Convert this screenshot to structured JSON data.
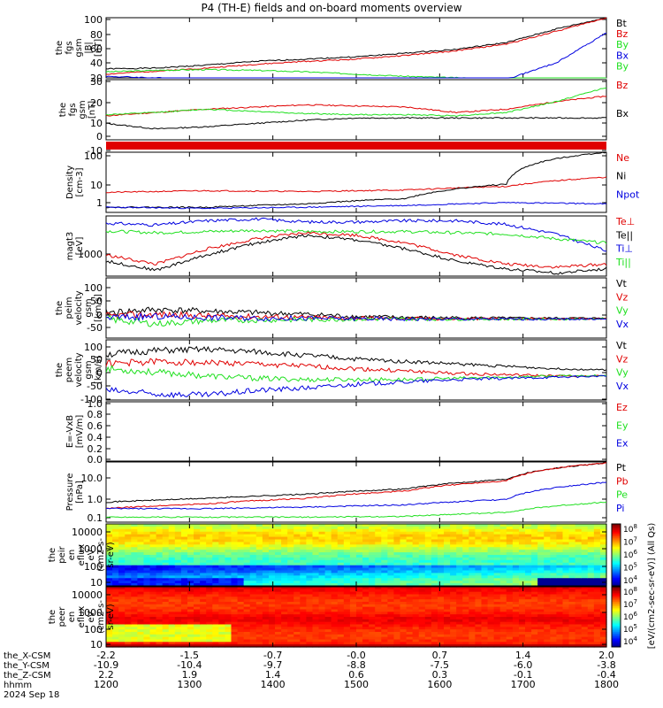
{
  "title": "P4 (TH-E) fields and on-board moments overview",
  "colors": {
    "black": "#000000",
    "red": "#e00000",
    "green": "#20e020",
    "blue": "#0000e0",
    "white": "#ffffff"
  },
  "chart_data": [
    {
      "id": "fgs_mag",
      "type": "line",
      "ylabel": [
        "the",
        "fgs",
        "gsm",
        "|B|",
        "[nT]"
      ],
      "yticks": [
        "100",
        "80",
        "60",
        "40",
        "20"
      ],
      "ylim": [
        20,
        100
      ],
      "legend": [
        {
          "label": "Bt",
          "color": "black"
        },
        {
          "label": "Bz",
          "color": "red"
        },
        {
          "label": "By",
          "color": "green"
        },
        {
          "label": "Bx",
          "color": "blue"
        },
        {
          "label": "By",
          "color": "green"
        }
      ],
      "series": [
        {
          "name": "Bt",
          "color": "black",
          "x": [
            0,
            0.1,
            0.2,
            0.3,
            0.4,
            0.5,
            0.6,
            0.7,
            0.8,
            0.9,
            1.0
          ],
          "y": [
            32,
            33,
            37,
            42,
            45,
            48,
            53,
            58,
            67,
            85,
            100
          ]
        },
        {
          "name": "Bz",
          "color": "red",
          "x": [
            0,
            0.1,
            0.2,
            0.3,
            0.4,
            0.5,
            0.6,
            0.7,
            0.8,
            0.9,
            1.0
          ],
          "y": [
            25,
            29,
            33,
            38,
            42,
            45,
            50,
            56,
            65,
            82,
            100
          ]
        },
        {
          "name": "By",
          "color": "green",
          "x": [
            0,
            0.1,
            0.2,
            0.3,
            0.4,
            0.5,
            0.6,
            0.7,
            0.8,
            0.9,
            1.0
          ],
          "y": [
            28,
            30,
            31,
            30,
            28,
            25,
            22,
            20,
            18,
            17,
            16
          ]
        },
        {
          "name": "Bx",
          "color": "blue",
          "x": [
            0,
            0.1,
            0.2,
            0.3,
            0.4,
            0.5,
            0.6,
            0.7,
            0.8,
            0.9,
            1.0
          ],
          "y": [
            22,
            20,
            18,
            15,
            12,
            10,
            10,
            12,
            18,
            40,
            80
          ]
        }
      ]
    },
    {
      "id": "fgs_comp",
      "type": "line",
      "ylabel": [
        "the",
        "fgs",
        "gsm",
        "[nT]"
      ],
      "yticks": [
        "30",
        "20",
        "10",
        "0",
        "-10"
      ],
      "ylim": [
        -20,
        35
      ],
      "legend": [
        {
          "label": "Bz",
          "color": "red"
        },
        {
          "label": "Bx",
          "color": "black"
        }
      ],
      "series": [
        {
          "name": "Bz",
          "color": "red",
          "x": [
            0,
            0.1,
            0.2,
            0.3,
            0.4,
            0.5,
            0.6,
            0.7,
            0.8,
            0.9,
            1.0
          ],
          "y": [
            2,
            5,
            8,
            10,
            12,
            11,
            10,
            5,
            8,
            15,
            20
          ]
        },
        {
          "name": "By",
          "color": "green",
          "x": [
            0,
            0.1,
            0.2,
            0.3,
            0.4,
            0.5,
            0.6,
            0.7,
            0.8,
            0.9,
            1.0
          ],
          "y": [
            3,
            5,
            8,
            6,
            4,
            3,
            3,
            2,
            5,
            15,
            28
          ]
        },
        {
          "name": "Bx",
          "color": "black",
          "x": [
            0,
            0.1,
            0.2,
            0.3,
            0.4,
            0.5,
            0.6,
            0.7,
            0.8,
            0.9,
            1.0
          ],
          "y": [
            -5,
            -10,
            -8,
            -5,
            -2,
            0,
            0,
            0,
            0,
            0,
            0
          ]
        }
      ]
    },
    {
      "id": "density",
      "type": "line",
      "ylog": true,
      "ylabel": [
        "Density",
        "[cm-3]"
      ],
      "yticks": [
        "100",
        "10",
        "1"
      ],
      "ylim": [
        0.3,
        120
      ],
      "legend": [
        {
          "label": "Ne",
          "color": "red"
        },
        {
          "label": "Ni",
          "color": "black"
        },
        {
          "label": "Npot",
          "color": "blue"
        }
      ],
      "series": [
        {
          "name": "Ne",
          "color": "red",
          "x": [
            0,
            0.2,
            0.4,
            0.6,
            0.8,
            1.0
          ],
          "y": [
            2.2,
            2.6,
            2.4,
            2.8,
            4,
            10
          ]
        },
        {
          "name": "Ni",
          "color": "black",
          "x": [
            0,
            0.2,
            0.4,
            0.6,
            0.8,
            1.0
          ],
          "y": [
            0.5,
            0.5,
            0.7,
            1.2,
            5,
            120
          ]
        },
        {
          "name": "Npot",
          "color": "blue",
          "x": [
            0,
            0.2,
            0.4,
            0.6,
            0.8,
            1.0
          ],
          "y": [
            0.5,
            0.45,
            0.5,
            0.6,
            0.8,
            0.7
          ]
        }
      ]
    },
    {
      "id": "temperature",
      "type": "line",
      "ylabel": [
        "magt3",
        "[eV]"
      ],
      "yticks": [
        "1000"
      ],
      "ylim": [
        0,
        1
      ],
      "legend": [
        {
          "label": "Te⊥",
          "color": "red"
        },
        {
          "label": "Te||",
          "color": "black"
        },
        {
          "label": "Ti⊥",
          "color": "blue"
        },
        {
          "label": "Ti||",
          "color": "green"
        }
      ],
      "series": [
        {
          "name": "Ti⊥",
          "color": "blue",
          "x": [
            0,
            0.1,
            0.2,
            0.3,
            0.4,
            0.5,
            0.6,
            0.7,
            0.8,
            0.9,
            1.0
          ],
          "y": [
            0.88,
            0.85,
            0.92,
            0.95,
            0.9,
            0.9,
            0.92,
            0.92,
            0.86,
            0.7,
            0.42
          ]
        },
        {
          "name": "Ti||",
          "color": "green",
          "x": [
            0,
            0.1,
            0.2,
            0.3,
            0.4,
            0.5,
            0.6,
            0.7,
            0.8,
            0.9,
            1.0
          ],
          "y": [
            0.75,
            0.72,
            0.74,
            0.76,
            0.74,
            0.74,
            0.74,
            0.72,
            0.7,
            0.62,
            0.55
          ]
        },
        {
          "name": "Te⊥",
          "color": "red",
          "x": [
            0,
            0.1,
            0.2,
            0.3,
            0.4,
            0.5,
            0.6,
            0.7,
            0.8,
            0.9,
            1.0
          ],
          "y": [
            0.35,
            0.2,
            0.45,
            0.62,
            0.72,
            0.68,
            0.55,
            0.35,
            0.2,
            0.15,
            0.2
          ]
        },
        {
          "name": "Te||",
          "color": "black",
          "x": [
            0,
            0.1,
            0.2,
            0.3,
            0.4,
            0.5,
            0.6,
            0.7,
            0.8,
            0.9,
            1.0
          ],
          "y": [
            0.25,
            0.1,
            0.35,
            0.55,
            0.68,
            0.6,
            0.45,
            0.25,
            0.12,
            0.05,
            0.12
          ]
        }
      ]
    },
    {
      "id": "peim_vel",
      "type": "line",
      "ylabel": [
        "the",
        "peim",
        "velocity",
        "gsm",
        "[km/s]"
      ],
      "yticks": [
        "100",
        "50",
        "0",
        "-50"
      ],
      "ylim": [
        -60,
        130
      ],
      "legend": [
        {
          "label": "Vt",
          "color": "black"
        },
        {
          "label": "Vz",
          "color": "red"
        },
        {
          "label": "Vy",
          "color": "green"
        },
        {
          "label": "Vx",
          "color": "blue"
        }
      ],
      "series": [
        {
          "name": "Vt",
          "color": "black",
          "x": [
            0,
            0.1,
            0.2,
            0.3,
            0.4,
            0.5,
            0.6,
            0.7,
            0.8,
            0.9,
            1.0
          ],
          "y": [
            20,
            30,
            25,
            20,
            15,
            8,
            5,
            4,
            3,
            3,
            3
          ]
        },
        {
          "name": "Vz",
          "color": "red",
          "x": [
            0,
            0.1,
            0.2,
            0.3,
            0.4,
            0.5,
            0.6,
            0.7,
            0.8,
            0.9,
            1.0
          ],
          "y": [
            10,
            15,
            10,
            8,
            5,
            3,
            2,
            1,
            1,
            1,
            1
          ]
        },
        {
          "name": "Vy",
          "color": "green",
          "x": [
            0,
            0.1,
            0.2,
            0.3,
            0.4,
            0.5,
            0.6,
            0.7,
            0.8,
            0.9,
            1.0
          ],
          "y": [
            0,
            -15,
            -5,
            -3,
            -2,
            0,
            0,
            0,
            0,
            0,
            0
          ]
        },
        {
          "name": "Vx",
          "color": "blue",
          "x": [
            0,
            0.1,
            0.2,
            0.3,
            0.4,
            0.5,
            0.6,
            0.7,
            0.8,
            0.9,
            1.0
          ],
          "y": [
            5,
            8,
            5,
            3,
            2,
            1,
            0,
            0,
            0,
            0,
            0
          ]
        }
      ]
    },
    {
      "id": "peem_vel",
      "type": "line",
      "ylabel": [
        "the",
        "peem",
        "velocity",
        "gsm",
        "[km/s]"
      ],
      "yticks": [
        "100",
        "50",
        "0",
        "-50",
        "-100"
      ],
      "ylim": [
        -110,
        140
      ],
      "legend": [
        {
          "label": "Vt",
          "color": "black"
        },
        {
          "label": "Vz",
          "color": "red"
        },
        {
          "label": "Vy",
          "color": "green"
        },
        {
          "label": "Vx",
          "color": "blue"
        }
      ],
      "series": [
        {
          "name": "Vt",
          "color": "black",
          "x": [
            0,
            0.1,
            0.2,
            0.3,
            0.4,
            0.5,
            0.6,
            0.7,
            0.8,
            0.9,
            1.0
          ],
          "y": [
            80,
            95,
            100,
            90,
            75,
            60,
            50,
            40,
            30,
            20,
            15
          ]
        },
        {
          "name": "Vz",
          "color": "red",
          "x": [
            0,
            0.1,
            0.2,
            0.3,
            0.4,
            0.5,
            0.6,
            0.7,
            0.8,
            0.9,
            1.0
          ],
          "y": [
            40,
            50,
            45,
            40,
            30,
            20,
            10,
            0,
            -5,
            -10,
            -10
          ]
        },
        {
          "name": "Vy",
          "color": "green",
          "x": [
            0,
            0.1,
            0.2,
            0.3,
            0.4,
            0.5,
            0.6,
            0.7,
            0.8,
            0.9,
            1.0
          ],
          "y": [
            20,
            5,
            -10,
            -20,
            -25,
            -25,
            -25,
            -20,
            -15,
            -10,
            -8
          ]
        },
        {
          "name": "Vx",
          "color": "blue",
          "x": [
            0,
            0.1,
            0.2,
            0.3,
            0.4,
            0.5,
            0.6,
            0.7,
            0.8,
            0.9,
            1.0
          ],
          "y": [
            -70,
            -85,
            -90,
            -70,
            -60,
            -45,
            -35,
            -25,
            -20,
            -15,
            -10
          ]
        }
      ]
    },
    {
      "id": "efield",
      "type": "line",
      "ylabel": [
        "E=-VxB",
        "[mV/m]"
      ],
      "yticks": [
        "1.0",
        "0.8",
        "0.6",
        "0.4",
        "0.2",
        "0.0"
      ],
      "ylim": [
        0,
        1
      ],
      "legend": [
        {
          "label": "Ez",
          "color": "red"
        },
        {
          "label": "Ey",
          "color": "green"
        },
        {
          "label": "Ex",
          "color": "blue"
        }
      ],
      "series": []
    },
    {
      "id": "pressure",
      "type": "line",
      "ylog": true,
      "ylabel": [
        "Pressure",
        "[nPa]"
      ],
      "yticks": [
        "10.0",
        "1.0",
        "0.1"
      ],
      "ylim": [
        0.07,
        45
      ],
      "legend": [
        {
          "label": "Pt",
          "color": "black"
        },
        {
          "label": "Pb",
          "color": "red"
        },
        {
          "label": "Pe",
          "color": "green"
        },
        {
          "label": "Pi",
          "color": "blue"
        }
      ],
      "series": [
        {
          "name": "Pt",
          "color": "black",
          "x": [
            0,
            0.2,
            0.4,
            0.6,
            0.8,
            1.0
          ],
          "y": [
            0.6,
            0.9,
            1.4,
            2.5,
            7,
            40
          ]
        },
        {
          "name": "Pb",
          "color": "red",
          "x": [
            0,
            0.2,
            0.4,
            0.6,
            0.8,
            1.0
          ],
          "y": [
            0.3,
            0.5,
            0.9,
            2,
            6,
            40
          ]
        },
        {
          "name": "Pi",
          "color": "blue",
          "x": [
            0,
            0.2,
            0.4,
            0.6,
            0.8,
            1.0
          ],
          "y": [
            0.3,
            0.3,
            0.35,
            0.45,
            0.8,
            5
          ]
        },
        {
          "name": "Pe",
          "color": "green",
          "x": [
            0,
            0.2,
            0.4,
            0.6,
            0.8,
            1.0
          ],
          "y": [
            0.12,
            0.12,
            0.12,
            0.13,
            0.2,
            0.6
          ]
        }
      ]
    },
    {
      "id": "peir_spec",
      "type": "heatmap",
      "ylabel": [
        "the",
        "peir",
        "en",
        "eflux",
        "eV",
        "(cm2-s-",
        "sr-eV)"
      ],
      "yticks": [
        "10000",
        "1000",
        "100",
        "10"
      ],
      "colorbar_ticks": [
        "10^8",
        "10^7",
        "10^6",
        "10^5",
        "10^4"
      ]
    },
    {
      "id": "peer_spec",
      "type": "heatmap",
      "ylabel": [
        "the",
        "peer",
        "en",
        "eflux",
        "eV",
        "(cm2-s-",
        "sr-eV)"
      ],
      "yticks": [
        "10000",
        "1000",
        "100",
        "10"
      ],
      "colorbar_ticks": [
        "10^8",
        "10^7",
        "10^6",
        "10^5",
        "10^4"
      ],
      "colorbar_label": "[eV/(cm2-sec-sr-eV)] (All Qs)"
    }
  ],
  "xaxis": {
    "row_labels": [
      "the_X-CSM",
      "the_Y-CSM",
      "the_Z-CSM",
      "hhmm",
      "2024 Sep 18"
    ],
    "rows": [
      [
        "-2.2",
        "-1.5",
        "-0.7",
        "-0.0",
        "0.7",
        "1.4",
        "2.0"
      ],
      [
        "-10.9",
        "-10.4",
        "-9.7",
        "-8.8",
        "-7.5",
        "-6.0",
        "-3.8"
      ],
      [
        "2.2",
        "1.9",
        "1.4",
        "0.6",
        "0.3",
        "-0.1",
        "-0.4"
      ],
      [
        "1200",
        "1300",
        "1400",
        "1500",
        "1600",
        "1700",
        "1800"
      ]
    ]
  }
}
